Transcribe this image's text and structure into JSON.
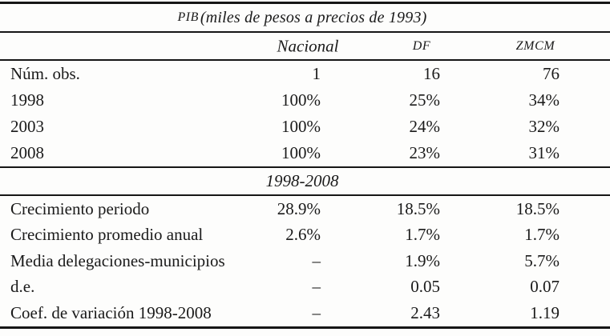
{
  "table": {
    "title": {
      "abbr": "PIB",
      "rest": "(miles de pesos a precios de 1993)"
    },
    "columns": {
      "nacional": "Nacional",
      "df": "DF",
      "zmcm": "ZMCM"
    },
    "section1_rows": [
      {
        "label": "Núm. obs.",
        "nacional": "1",
        "df": "16",
        "zmcm": "76"
      },
      {
        "label": "1998",
        "nacional": "100%",
        "df": "25%",
        "zmcm": "34%"
      },
      {
        "label": "2003",
        "nacional": "100%",
        "df": "24%",
        "zmcm": "32%"
      },
      {
        "label": "2008",
        "nacional": "100%",
        "df": "23%",
        "zmcm": "31%"
      }
    ],
    "section2_header": "1998-2008",
    "section2_rows": [
      {
        "label": "Crecimiento periodo",
        "nacional": "28.9%",
        "df": "18.5%",
        "zmcm": "18.5%"
      },
      {
        "label": "Crecimiento promedio anual",
        "nacional": "2.6%",
        "df": "1.7%",
        "zmcm": "1.7%"
      },
      {
        "label": "Media delegaciones-municipios",
        "nacional": "–",
        "df": "1.9%",
        "zmcm": "5.7%"
      },
      {
        "label": "d.e.",
        "nacional": "–",
        "df": "0.05",
        "zmcm": "0.07"
      },
      {
        "label": "Coef. de variación 1998-2008",
        "nacional": "–",
        "df": "2.43",
        "zmcm": "1.19"
      }
    ],
    "colors": {
      "text": "#1a1a1a",
      "rule": "#161616",
      "background": "#fdfdfc"
    }
  }
}
